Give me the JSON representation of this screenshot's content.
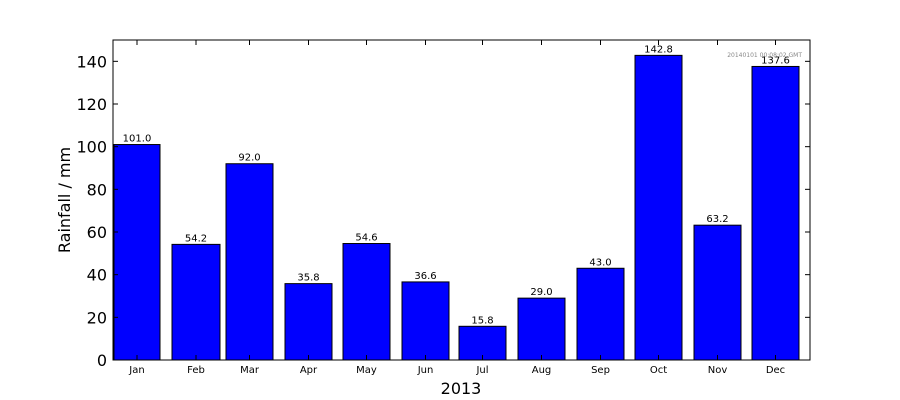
{
  "chart_data": {
    "type": "bar",
    "title": "",
    "xlabel": "2013",
    "ylabel": "Rainfall / mm",
    "ylim": [
      0,
      150
    ],
    "yticks": [
      0,
      20,
      40,
      60,
      80,
      100,
      120,
      140
    ],
    "grid": false,
    "categories": [
      "Jan",
      "Feb",
      "Mar",
      "Apr",
      "May",
      "Jun",
      "Jul",
      "Aug",
      "Sep",
      "Oct",
      "Nov",
      "Dec"
    ],
    "values": [
      101.0,
      54.2,
      92.0,
      35.8,
      54.6,
      36.6,
      15.8,
      29.0,
      43.0,
      142.8,
      63.2,
      137.6
    ],
    "data_labels": [
      "101.0",
      "54.2",
      "92.0",
      "35.8",
      "54.6",
      "36.6",
      "15.8",
      "29.0",
      "43.0",
      "142.8",
      "63.2",
      "137.6"
    ],
    "bar_color": "#0000ff",
    "edge_color": "#000000",
    "annotation": "20140101 00:08:02 GMT"
  }
}
